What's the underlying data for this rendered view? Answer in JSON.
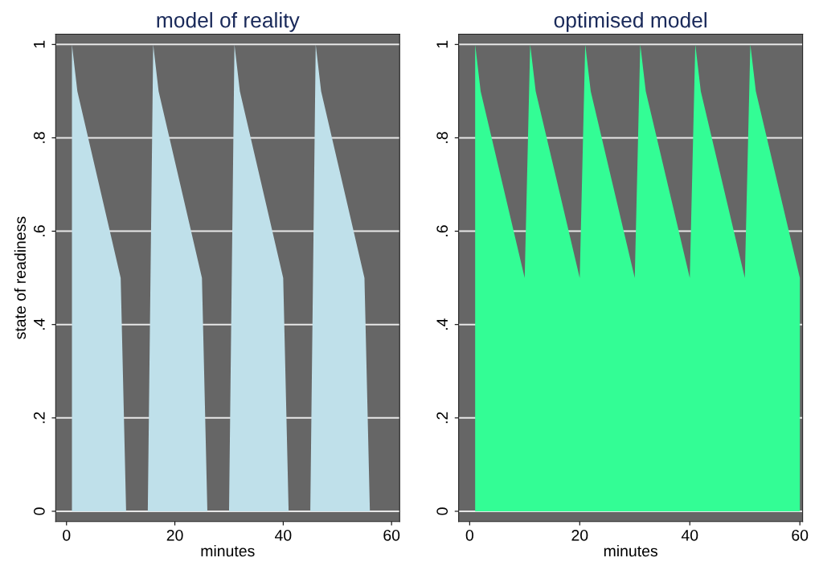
{
  "chart_data": [
    {
      "type": "area",
      "title": "model of reality",
      "xlabel": "minutes",
      "ylabel": "state of readiness",
      "x": [
        1,
        2,
        10,
        11,
        15,
        16,
        17,
        25,
        26,
        30,
        31,
        32,
        40,
        41,
        45,
        46,
        47,
        55,
        56
      ],
      "series": [
        {
          "color": "#bfe0ea",
          "values": [
            1,
            0.9,
            0.5,
            0,
            0,
            1,
            0.9,
            0.5,
            0,
            0,
            1,
            0.9,
            0.5,
            0,
            0,
            1,
            0.9,
            0.5,
            0
          ]
        }
      ],
      "xlim": [
        -2,
        61.5
      ],
      "xticks": [
        0,
        20,
        40,
        60
      ],
      "ylim": [
        -0.022,
        1.022
      ],
      "yticks": [
        0,
        {
          "value": 0.2,
          "label": ".2"
        },
        {
          "value": 0.4,
          "label": ".4"
        },
        {
          "value": 0.6,
          "label": ".6"
        },
        {
          "value": 0.8,
          "label": ".8"
        },
        1
      ],
      "grid": "y",
      "legend": false
    },
    {
      "type": "area",
      "title": "optimised model",
      "xlabel": "minutes",
      "x": [
        1,
        2,
        10,
        11,
        12,
        20,
        21,
        22,
        30,
        31,
        32,
        40,
        41,
        42,
        50,
        51,
        52,
        60
      ],
      "series": [
        {
          "color": "#33fd95",
          "values": [
            1,
            0.9,
            0.5,
            1,
            0.9,
            0.5,
            1,
            0.9,
            0.5,
            1,
            0.9,
            0.5,
            1,
            0.9,
            0.5,
            1,
            0.9,
            0.5
          ]
        }
      ],
      "xlim": [
        -2,
        60.5
      ],
      "xticks": [
        0,
        20,
        40,
        60
      ],
      "ylim": [
        -0.022,
        1.022
      ],
      "yticks": [
        0,
        {
          "value": 0.2,
          "label": ".2"
        },
        {
          "value": 0.4,
          "label": ".4"
        },
        {
          "value": 0.6,
          "label": ".6"
        },
        {
          "value": 0.8,
          "label": ".8"
        },
        1
      ],
      "grid": "y",
      "legend": false
    }
  ]
}
